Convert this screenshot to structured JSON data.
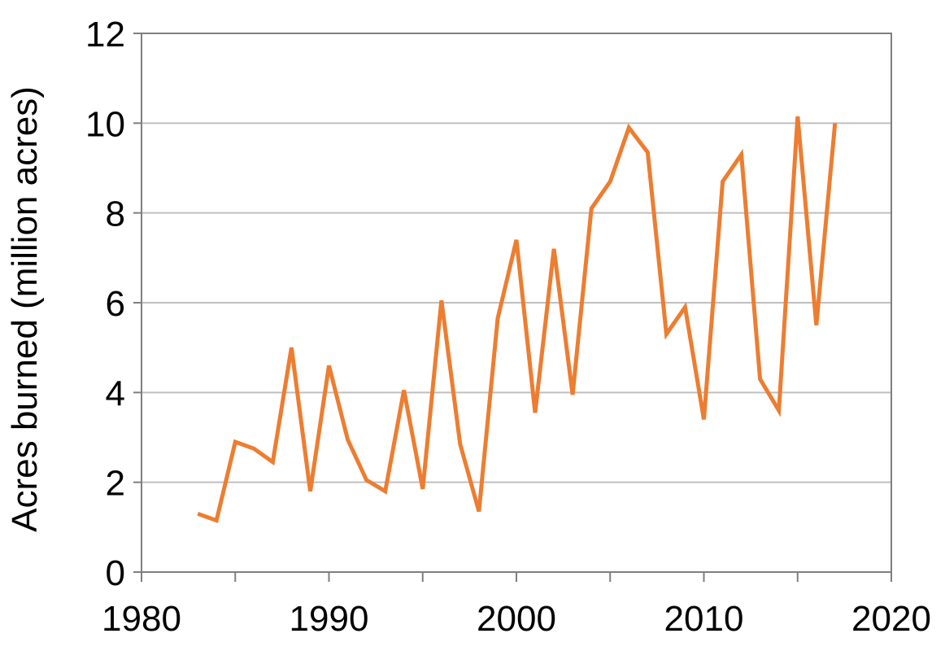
{
  "chart_data": {
    "type": "line",
    "title": "",
    "xlabel": "",
    "ylabel": "Acres burned (million acres)",
    "xlim": [
      1980,
      2020
    ],
    "ylim": [
      0,
      12
    ],
    "x_ticks": [
      1980,
      1990,
      2000,
      2010,
      2020
    ],
    "y_ticks": [
      0,
      2,
      4,
      6,
      8,
      10,
      12
    ],
    "grid": "horizontal",
    "legend": "none",
    "series": [
      {
        "color": "#ED7D31",
        "x": [
          1983,
          1984,
          1985,
          1986,
          1987,
          1988,
          1989,
          1990,
          1991,
          1992,
          1993,
          1994,
          1995,
          1996,
          1997,
          1998,
          1999,
          2000,
          2001,
          2002,
          2003,
          2004,
          2005,
          2006,
          2007,
          2008,
          2009,
          2010,
          2011,
          2012,
          2013,
          2014,
          2015,
          2016,
          2017
        ],
        "y": [
          1.3,
          1.15,
          2.9,
          2.75,
          2.45,
          5.0,
          1.8,
          4.6,
          2.95,
          2.05,
          1.8,
          4.05,
          1.85,
          6.05,
          2.85,
          1.35,
          5.65,
          7.4,
          3.55,
          7.2,
          3.95,
          8.1,
          8.7,
          9.9,
          9.35,
          5.3,
          5.9,
          3.4,
          8.7,
          9.3,
          4.3,
          3.6,
          10.15,
          5.5,
          10.0
        ]
      }
    ]
  }
}
